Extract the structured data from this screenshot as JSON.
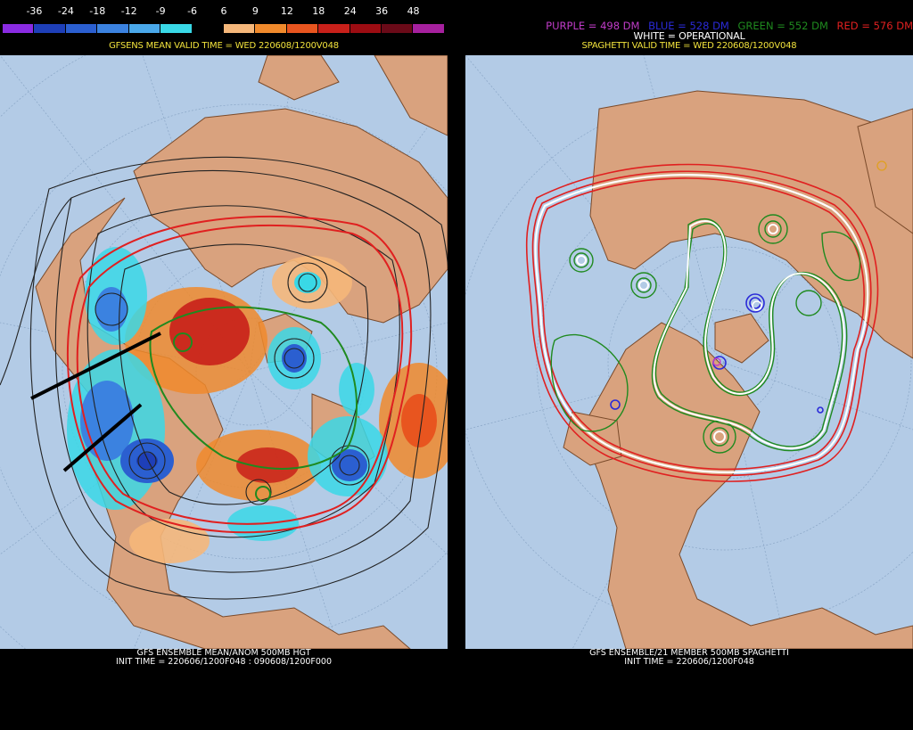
{
  "left": {
    "colorbar": {
      "labels": [
        "-36",
        "-24",
        "-18",
        "-12",
        "-9",
        "-6",
        "6",
        "9",
        "12",
        "18",
        "24",
        "36",
        "48"
      ],
      "colors": [
        "#8a2be2",
        "#1e3fb8",
        "#2b5fd0",
        "#3b82e0",
        "#4aa8ea",
        "#39d8e6",
        "#000000",
        "#f5b77a",
        "#f08a2c",
        "#e8551f",
        "#c8201a",
        "#9c0c12",
        "#6a0a18",
        "#a6209e"
      ]
    },
    "title": "GFSENS MEAN VALID TIME = WED 220608/1200V048",
    "footer_line1": "GFS ENSEMBLE MEAN/ANOM 500MB HGT",
    "footer_line2": "INIT TIME = 220606/1200F048 : 090608/1200F000"
  },
  "right": {
    "legend": {
      "purple": "PURPLE = 498 DM",
      "blue": "BLUE = 528 DM",
      "green": "GREEN = 552 DM",
      "red": "RED = 576 DM",
      "white": "WHITE = OPERATIONAL"
    },
    "title": "SPAGHETTI VALID TIME = WED 220608/1200V048",
    "footer_line1": "GFS ENSEMBLE/21 MEMBER 500MB SPAGHETTI",
    "footer_line2": "INIT TIME = 220606/1200F048"
  },
  "colors": {
    "ocean": "#b3cbe6",
    "land": "#d9a27e",
    "border": "#7a4a2a",
    "title_yellow": "#f2e33c",
    "purple": "#c03cc8",
    "blue": "#2a2ad8",
    "green": "#1f8a1f",
    "red": "#e02020",
    "white": "#ffffff"
  }
}
